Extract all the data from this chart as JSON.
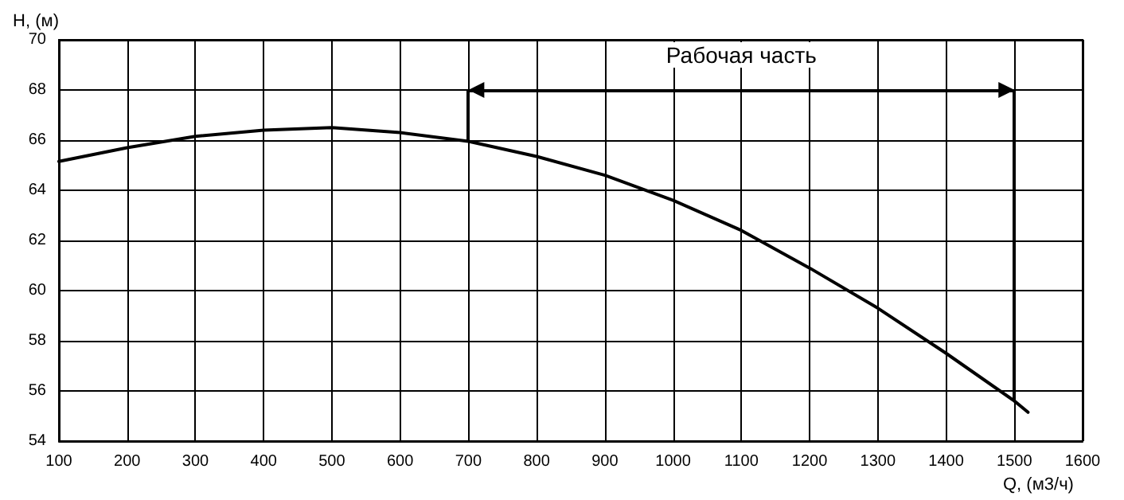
{
  "chart_data": {
    "type": "line",
    "xlabel": "Q, (м3/ч)",
    "ylabel": "H, (м)",
    "x": [
      100,
      200,
      300,
      400,
      500,
      600,
      700,
      800,
      900,
      1000,
      1100,
      1200,
      1300,
      1400,
      1500,
      1520
    ],
    "series": [
      {
        "color": "#000000",
        "values": [
          65.15,
          65.7,
          66.15,
          66.4,
          66.5,
          66.3,
          65.95,
          65.35,
          64.6,
          63.6,
          62.4,
          60.9,
          59.3,
          57.5,
          55.6,
          55.15
        ]
      }
    ],
    "xlim": [
      100,
      1600
    ],
    "xticks": [
      100,
      200,
      300,
      400,
      500,
      600,
      700,
      800,
      900,
      1000,
      1100,
      1200,
      1300,
      1400,
      1500,
      1600
    ],
    "ylim": [
      54,
      70
    ],
    "yticks": [
      54,
      56,
      58,
      60,
      62,
      64,
      66,
      68,
      70
    ],
    "ref_lines": [
      {
        "axis": "x",
        "value": 700,
        "color": "#000000"
      },
      {
        "axis": "x",
        "value": 1500,
        "color": "#000000"
      },
      {
        "axis": "y",
        "value": 68,
        "label": "Рабочая часть",
        "color": "#000000"
      }
    ],
    "grid": true,
    "marker": "none",
    "line_style": "solid"
  }
}
